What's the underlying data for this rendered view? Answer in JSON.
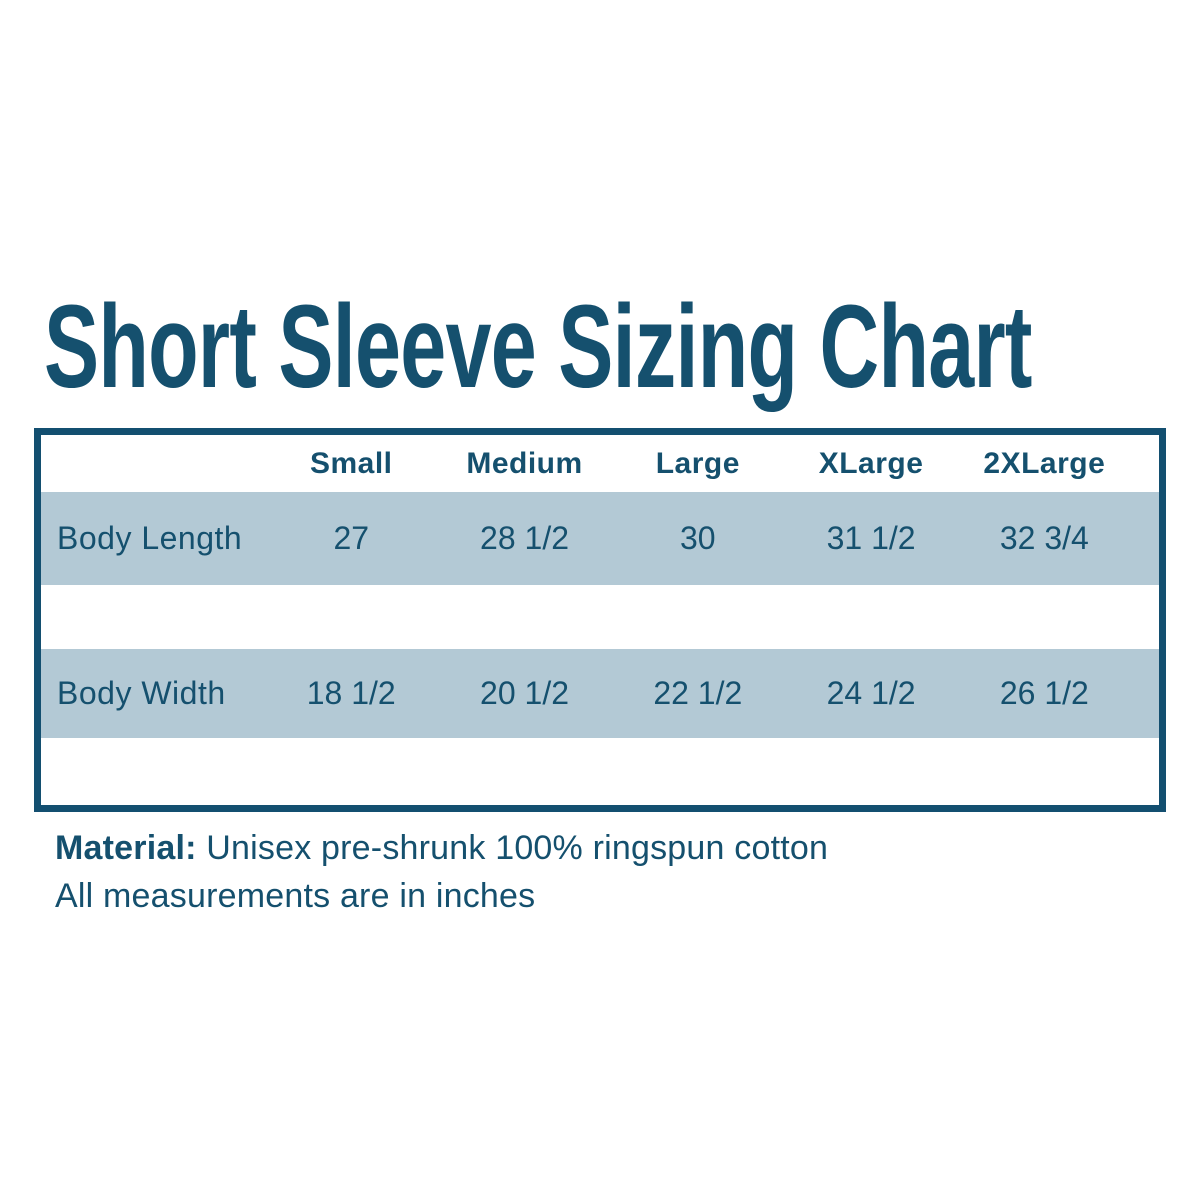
{
  "title": "Short Sleeve Sizing Chart",
  "colors": {
    "accent_text": "#15506e",
    "table_border": "#134f70",
    "row_background": "#b3c9d5",
    "page_background": "#ffffff"
  },
  "table": {
    "headers": [
      "Small",
      "Medium",
      "Large",
      "XLarge",
      "2XLarge"
    ],
    "rows": [
      {
        "label": "Body Length",
        "values": [
          "27",
          "28 1/2",
          "30",
          "31 1/2",
          "32 3/4"
        ]
      },
      {
        "label": "Body Width",
        "values": [
          "18 1/2",
          "20 1/2",
          "22 1/2",
          "24 1/2",
          "26 1/2"
        ]
      }
    ]
  },
  "notes": {
    "material_label": "Material:",
    "material_value": "Unisex pre-shrunk 100% ringspun cotton",
    "measurements_note": "All measurements are in inches"
  },
  "chart_data": {
    "type": "table",
    "title": "Short Sleeve Sizing Chart",
    "categories": [
      "Small",
      "Medium",
      "Large",
      "XLarge",
      "2XLarge"
    ],
    "series": [
      {
        "name": "Body Length",
        "values": [
          27,
          28.5,
          30,
          31.5,
          32.75
        ],
        "display": [
          "27",
          "28 1/2",
          "30",
          "31 1/2",
          "32 3/4"
        ]
      },
      {
        "name": "Body Width",
        "values": [
          18.5,
          20.5,
          22.5,
          24.5,
          26.5
        ],
        "display": [
          "18 1/2",
          "20 1/2",
          "22 1/2",
          "24 1/2",
          "26 1/2"
        ]
      }
    ],
    "units": "inches"
  }
}
